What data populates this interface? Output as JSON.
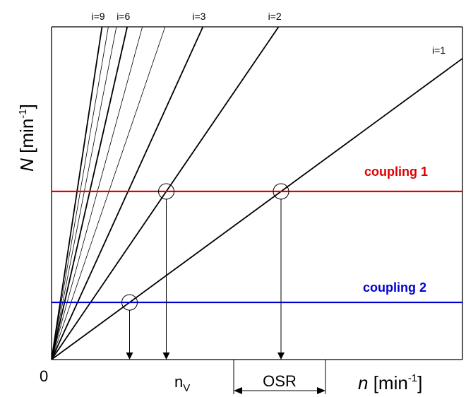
{
  "axes": {
    "y_label": {
      "var": "N",
      "unit_open": " [min",
      "exp": "-1",
      "unit_close": "]"
    },
    "x_label": {
      "var": "n",
      "unit_open": " [min",
      "exp": "-1",
      "unit_close": "]"
    },
    "origin_label": "0"
  },
  "ratio_lines": {
    "values": [
      1,
      2,
      3,
      4,
      5,
      6,
      7,
      8,
      9
    ],
    "labeled": {
      "1": "i=1",
      "2": "i=2",
      "3": "i=3",
      "6": "i=6",
      "9": "i=9"
    },
    "bold": [
      1,
      2,
      3,
      6,
      9
    ]
  },
  "couplings": [
    {
      "label": "coupling 1",
      "color": "#e00000",
      "N": 1.0
    },
    {
      "label": "coupling 2",
      "color": "#0000d0",
      "N": 0.34
    }
  ],
  "markers": {
    "nv_label": {
      "base": "n",
      "sub": "V"
    },
    "osr_label": "OSR"
  }
}
